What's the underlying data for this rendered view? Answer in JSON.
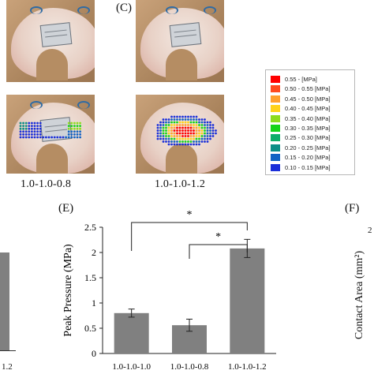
{
  "panels": {
    "c_label": "(C)",
    "e_label": "(E)",
    "f_label": "(F)"
  },
  "photos": {
    "caption_left": "1.0-1.0-0.8",
    "caption_right": "1.0-1.0-1.2"
  },
  "legend": {
    "unit": "[MPa]",
    "entries": [
      {
        "label": "0.55 -",
        "color": "#ff0000"
      },
      {
        "label": "0.50 - 0.55",
        "color": "#ff4a1f"
      },
      {
        "label": "0.45 - 0.50",
        "color": "#ff9f2e"
      },
      {
        "label": "0.40 - 0.45",
        "color": "#ffd21a"
      },
      {
        "label": "0.35 - 0.40",
        "color": "#8ddc1e"
      },
      {
        "label": "0.30 - 0.35",
        "color": "#15d41a"
      },
      {
        "label": "0.25 - 0.30",
        "color": "#0fae6a"
      },
      {
        "label": "0.20 - 0.25",
        "color": "#0c8e86"
      },
      {
        "label": "0.15 - 0.20",
        "color": "#1262c4"
      },
      {
        "label": "0.10 - 0.15",
        "color": "#1a2fd9"
      }
    ]
  },
  "left_partial": {
    "tick_label": "1.2"
  },
  "f_partial": {
    "tick_label": "2",
    "ylabel": "Contact Area (mm²)"
  },
  "chart_data": {
    "type": "bar",
    "panel": "(E)",
    "categories": [
      "1.0-1.0-1.0",
      "1.0-1.0-0.8",
      "1.0-1.0-1.2"
    ],
    "values": [
      0.8,
      0.56,
      2.08
    ],
    "errors": [
      0.08,
      0.12,
      0.18
    ],
    "ylabel": "Peak Pressure (MPa)",
    "xlabel": "",
    "ylim": [
      0,
      2.5
    ],
    "yticks": [
      "0",
      "0.5",
      "1",
      "1.5",
      "2",
      "2.5"
    ],
    "bar_color": "#808080",
    "significance": [
      {
        "from": "1.0-1.0-1.0",
        "to": "1.0-1.0-1.2",
        "mark": "*"
      },
      {
        "from": "1.0-1.0-0.8",
        "to": "1.0-1.0-1.2",
        "mark": "*"
      }
    ]
  }
}
